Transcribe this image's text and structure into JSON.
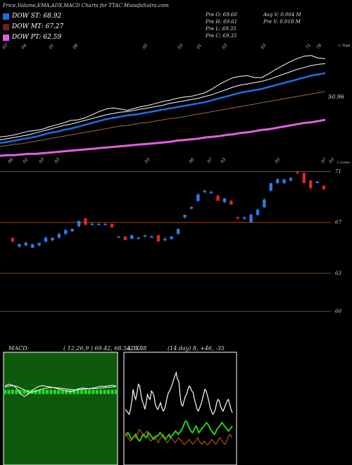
{
  "header": {
    "title": "Price,Volume,EMA,ADX,MACD Charts for TTAC MunafaSutra.com"
  },
  "legend": [
    {
      "label": "DOW ST: 68.92",
      "color": "#1e6ee0"
    },
    {
      "label": "DOW MT: 67.27",
      "color": "#6e1e1e"
    },
    {
      "label": "DOW PT: 62.59",
      "color": "#e060e0"
    }
  ],
  "ohlc": {
    "open": "Pre O: 69.60",
    "high": "Pre H: 69.61",
    "low": "Pre L: 69.35",
    "close": "Pre C: 69.35",
    "avg_volume": "Avg V: 0.004 M",
    "volume": "Pre V: 0.018 M"
  },
  "panels": {
    "ema_right_label": "< Tops",
    "ema_value_label": "50.96",
    "price_right_label": "< Lows"
  },
  "macd": {
    "label": "MACD:",
    "params": "( 12,26,9 ) 69.42, 68.54, 0.88"
  },
  "adx": {
    "label": "ADX",
    "params": "(14 day) 8, +46, -35"
  },
  "chart_data": [
    {
      "type": "line",
      "name": "ema-panel",
      "series": [
        {
          "color": "#ffffff",
          "values": [
            57.0,
            57.1,
            57.3,
            57.6,
            57.9,
            58.0,
            58.2,
            58.6,
            58.9,
            59.2,
            59.6,
            59.7,
            60.0,
            60.5,
            61.0,
            61.4,
            61.6,
            61.4,
            61.2,
            61.5,
            61.8,
            62.0,
            62.3,
            62.6,
            62.8,
            63.1,
            63.3,
            63.4,
            63.7,
            64.0,
            64.6,
            65.3,
            65.9,
            66.4,
            66.6,
            66.7,
            66.4,
            66.4,
            67.0,
            67.7,
            68.3,
            68.9,
            69.4,
            69.8,
            69.9,
            69.5,
            69.4
          ]
        },
        {
          "color": "#ffffff",
          "values": [
            56.5,
            56.7,
            56.9,
            57.1,
            57.3,
            57.6,
            57.9,
            58.2,
            58.5,
            58.8,
            59.0,
            59.3,
            59.6,
            59.9,
            60.2,
            60.5,
            60.7,
            60.9,
            61.0,
            61.2,
            61.4,
            61.6,
            61.8,
            62.0,
            62.3,
            62.5,
            62.7,
            62.9,
            63.1,
            63.4,
            63.7,
            64.1,
            64.5,
            64.9,
            65.2,
            65.4,
            65.6,
            65.8,
            66.1,
            66.5,
            66.9,
            67.3,
            67.7,
            68.0,
            68.3,
            68.5,
            68.6
          ]
        },
        {
          "color": "#1e6ee0",
          "values": [
            56.0,
            56.2,
            56.4,
            56.6,
            56.8,
            57.0,
            57.3,
            57.6,
            57.8,
            58.1,
            58.3,
            58.6,
            58.9,
            59.2,
            59.5,
            59.8,
            60.0,
            60.2,
            60.4,
            60.5,
            60.7,
            60.9,
            61.1,
            61.3,
            61.5,
            61.7,
            61.9,
            62.1,
            62.3,
            62.5,
            62.8,
            63.1,
            63.4,
            63.7,
            64.0,
            64.2,
            64.4,
            64.6,
            64.9,
            65.2,
            65.5,
            65.8,
            66.1,
            66.4,
            66.7,
            66.9,
            67.1
          ]
        },
        {
          "color": "#9a6a3a",
          "values": [
            55.5,
            55.6,
            55.8,
            55.9,
            56.1,
            56.3,
            56.5,
            56.7,
            56.9,
            57.1,
            57.3,
            57.5,
            57.7,
            57.9,
            58.1,
            58.3,
            58.5,
            58.7,
            58.8,
            59.0,
            59.2,
            59.3,
            59.5,
            59.7,
            59.9,
            60.0,
            60.2,
            60.4,
            60.6,
            60.8,
            61.0,
            61.2,
            61.4,
            61.6,
            61.8,
            62.0,
            62.2,
            62.4,
            62.6,
            62.8,
            63.0,
            63.2,
            63.4,
            63.6,
            63.8,
            64.0,
            64.2
          ]
        },
        {
          "color": "#e060e0",
          "values": [
            54.0,
            54.1,
            54.1,
            54.2,
            54.3,
            54.3,
            54.4,
            54.5,
            54.6,
            54.7,
            54.8,
            54.9,
            55.0,
            55.1,
            55.2,
            55.3,
            55.4,
            55.5,
            55.6,
            55.7,
            55.8,
            55.9,
            56.0,
            56.1,
            56.2,
            56.4,
            56.5,
            56.6,
            56.7,
            56.9,
            57.0,
            57.1,
            57.3,
            57.4,
            57.6,
            57.7,
            57.9,
            58.1,
            58.2,
            58.4,
            58.6,
            58.8,
            59.0,
            59.2,
            59.3,
            59.5,
            59.7
          ]
        }
      ],
      "ylim": [
        53,
        72
      ],
      "right_label": "50.96",
      "x_tick_labels": [
        "03",
        "04",
        "01",
        "08",
        "05",
        "03",
        "01",
        "03",
        "03",
        "71",
        "78"
      ],
      "x_bottom_labels": [
        "06",
        "02",
        "03",
        "03",
        "03",
        "06",
        "07",
        "03",
        "03",
        "07",
        "03"
      ]
    },
    {
      "type": "candlestick",
      "name": "price-panel",
      "ylim": [
        58,
        71.2
      ],
      "price_ticks": [
        71,
        67,
        63,
        60
      ],
      "candles": [
        {
          "o": 65.8,
          "c": 65.5,
          "h": 65.8,
          "l": 65.4,
          "up": false
        },
        {
          "o": 65.1,
          "c": 65.3,
          "h": 65.3,
          "l": 65.0,
          "up": true
        },
        {
          "o": 65.2,
          "c": 65.4,
          "h": 65.5,
          "l": 65.1,
          "up": true
        },
        {
          "o": 65.0,
          "c": 65.3,
          "h": 65.3,
          "l": 65.0,
          "up": true
        },
        {
          "o": 65.2,
          "c": 65.4,
          "h": 65.4,
          "l": 65.1,
          "up": true
        },
        {
          "o": 65.5,
          "c": 65.8,
          "h": 65.9,
          "l": 65.4,
          "up": true
        },
        {
          "o": 65.6,
          "c": 65.8,
          "h": 65.8,
          "l": 65.5,
          "up": true
        },
        {
          "o": 65.8,
          "c": 66.1,
          "h": 66.2,
          "l": 65.7,
          "up": true
        },
        {
          "o": 66.1,
          "c": 66.4,
          "h": 66.5,
          "l": 66.0,
          "up": true
        },
        {
          "o": 66.3,
          "c": 66.5,
          "h": 66.5,
          "l": 66.2,
          "up": true
        },
        {
          "o": 66.7,
          "c": 67.1,
          "h": 67.2,
          "l": 66.6,
          "up": true
        },
        {
          "o": 67.3,
          "c": 66.8,
          "h": 67.4,
          "l": 66.8,
          "up": false
        },
        {
          "o": 66.9,
          "c": 66.9,
          "h": 67.0,
          "l": 66.8,
          "up": true
        },
        {
          "o": 66.9,
          "c": 66.9,
          "h": 66.9,
          "l": 66.8,
          "up": true
        },
        {
          "o": 66.8,
          "c": 66.9,
          "h": 66.9,
          "l": 66.8,
          "up": true
        },
        {
          "o": 66.9,
          "c": 66.6,
          "h": 66.9,
          "l": 66.6,
          "up": false
        },
        {
          "o": 65.9,
          "c": 65.9,
          "h": 65.9,
          "l": 65.8,
          "up": true
        },
        {
          "o": 65.9,
          "c": 65.6,
          "h": 65.9,
          "l": 65.6,
          "up": false
        },
        {
          "o": 65.7,
          "c": 66.0,
          "h": 66.0,
          "l": 65.7,
          "up": true
        },
        {
          "o": 65.8,
          "c": 65.8,
          "h": 65.9,
          "l": 65.8,
          "up": true
        },
        {
          "o": 66.0,
          "c": 65.9,
          "h": 66.0,
          "l": 65.8,
          "up": true
        },
        {
          "o": 65.9,
          "c": 65.9,
          "h": 66.0,
          "l": 65.9,
          "up": true
        },
        {
          "o": 66.0,
          "c": 65.5,
          "h": 66.0,
          "l": 65.5,
          "up": false
        },
        {
          "o": 65.7,
          "c": 65.7,
          "h": 65.9,
          "l": 65.5,
          "up": true
        },
        {
          "o": 65.7,
          "c": 65.9,
          "h": 65.9,
          "l": 65.6,
          "up": true
        },
        {
          "o": 66.1,
          "c": 66.5,
          "h": 66.5,
          "l": 66.0,
          "up": true
        },
        {
          "o": 67.4,
          "c": 67.6,
          "h": 67.6,
          "l": 67.3,
          "up": true
        },
        {
          "o": 68.1,
          "c": 68.2,
          "h": 68.3,
          "l": 68.0,
          "up": true
        },
        {
          "o": 68.7,
          "c": 69.2,
          "h": 69.3,
          "l": 68.6,
          "up": true
        },
        {
          "o": 69.4,
          "c": 69.5,
          "h": 69.6,
          "l": 69.3,
          "up": true
        },
        {
          "o": 69.4,
          "c": 69.4,
          "h": 69.5,
          "l": 69.3,
          "up": true
        },
        {
          "o": 69.1,
          "c": 68.7,
          "h": 69.2,
          "l": 68.7,
          "up": false
        },
        {
          "o": 68.6,
          "c": 68.9,
          "h": 68.9,
          "l": 68.5,
          "up": true
        },
        {
          "o": 68.7,
          "c": 68.4,
          "h": 68.8,
          "l": 68.4,
          "up": false
        },
        {
          "o": 67.4,
          "c": 67.3,
          "h": 67.5,
          "l": 67.3,
          "up": false
        },
        {
          "o": 67.3,
          "c": 67.4,
          "h": 67.5,
          "l": 67.2,
          "up": true
        },
        {
          "o": 67.0,
          "c": 67.6,
          "h": 67.7,
          "l": 67.0,
          "up": true
        },
        {
          "o": 67.6,
          "c": 68.0,
          "h": 68.1,
          "l": 67.5,
          "up": true
        },
        {
          "o": 68.2,
          "c": 68.8,
          "h": 68.9,
          "l": 68.1,
          "up": true
        },
        {
          "o": 69.5,
          "c": 70.1,
          "h": 70.1,
          "l": 69.4,
          "up": true
        },
        {
          "o": 70.1,
          "c": 70.4,
          "h": 70.5,
          "l": 70.0,
          "up": true
        },
        {
          "o": 70.1,
          "c": 70.4,
          "h": 70.4,
          "l": 70.0,
          "up": true
        },
        {
          "o": 70.3,
          "c": 70.5,
          "h": 70.6,
          "l": 70.2,
          "up": true
        },
        {
          "o": 71.0,
          "c": 70.9,
          "h": 71.1,
          "l": 70.8,
          "up": false
        },
        {
          "o": 70.9,
          "c": 70.1,
          "h": 70.9,
          "l": 70.1,
          "up": false
        },
        {
          "o": 70.3,
          "c": 69.7,
          "h": 70.3,
          "l": 69.6,
          "up": false
        },
        {
          "o": 70.2,
          "c": 70.2,
          "h": 70.3,
          "l": 70.2,
          "up": true
        },
        {
          "o": 69.9,
          "c": 69.6,
          "h": 69.9,
          "l": 69.6,
          "up": false
        }
      ]
    },
    {
      "type": "line",
      "name": "macd-panel",
      "series": [
        {
          "color": "#ffffff",
          "values": [
            0.2,
            0.3,
            0.25,
            0.1,
            -0.2,
            -0.35,
            -0.25,
            -0.05,
            0.1,
            0.2,
            0.22,
            0.18,
            0.15,
            0.1,
            0.05,
            0.0,
            -0.05,
            -0.1,
            -0.05,
            0.05,
            0.1,
            0.08,
            0.06,
            0.1,
            0.15,
            0.2,
            0.18,
            0.22,
            0.25,
            0.2
          ]
        },
        {
          "color": "#ffffff",
          "values": [
            0.15,
            0.2,
            0.22,
            0.2,
            0.1,
            0.0,
            -0.1,
            -0.12,
            -0.08,
            0.0,
            0.05,
            0.1,
            0.12,
            0.12,
            0.1,
            0.08,
            0.05,
            0.02,
            0.0,
            0.01,
            0.03,
            0.05,
            0.06,
            0.07,
            0.08,
            0.1,
            0.12,
            0.14,
            0.16,
            0.18
          ]
        }
      ],
      "ylim": [
        -4,
        2
      ]
    },
    {
      "type": "line",
      "name": "adx-panel",
      "series": [
        {
          "color": "#ffffff",
          "values": [
            30,
            29,
            28,
            27,
            30,
            35,
            42,
            38,
            36,
            40,
            45,
            44,
            39,
            35,
            33,
            30,
            34,
            39,
            37,
            36,
            41,
            40,
            38,
            33,
            31,
            30,
            32,
            34,
            31,
            29,
            30,
            33,
            37,
            40,
            41,
            43,
            45,
            48,
            50,
            52,
            48,
            47,
            38,
            33,
            32,
            35,
            38,
            39,
            42,
            44,
            43,
            41,
            40,
            36,
            33,
            30,
            29,
            31,
            33,
            36,
            39,
            42,
            41,
            38,
            35,
            31,
            29,
            27,
            28,
            30,
            34,
            36,
            35,
            32,
            30,
            29,
            31,
            33,
            35,
            36,
            33,
            30,
            28
          ]
        },
        {
          "color": "#22cc22",
          "values": [
            14,
            15,
            16,
            15,
            13,
            12,
            13,
            14,
            15,
            13,
            12,
            11,
            12,
            14,
            15,
            14,
            13,
            14,
            16,
            15,
            14,
            13,
            12,
            13,
            14,
            14,
            15,
            16,
            15,
            14,
            13,
            12,
            13,
            14,
            15,
            13,
            14,
            15,
            16,
            17,
            16,
            15,
            16,
            17,
            18,
            20,
            22,
            23,
            22,
            20,
            18,
            17,
            16,
            17,
            19,
            20,
            18,
            16,
            17,
            18,
            19,
            20,
            21,
            22,
            21,
            20,
            18,
            17,
            16,
            15,
            16,
            18,
            19,
            20,
            21,
            22,
            21,
            20,
            19,
            18,
            17,
            18,
            19,
            20
          ]
        },
        {
          "color": "#cc6600",
          "values": [
            16,
            15,
            13,
            12,
            11,
            12,
            13,
            14,
            13,
            14,
            16,
            18,
            17,
            16,
            14,
            15,
            16,
            17,
            14,
            12,
            11,
            12,
            13,
            14,
            13,
            11,
            10,
            12,
            13,
            14,
            15,
            13,
            11,
            10,
            11,
            12,
            13,
            12,
            11,
            10,
            11,
            12,
            13,
            12,
            11,
            10,
            9,
            9,
            10,
            11,
            12,
            11,
            10,
            9,
            10,
            11,
            12,
            13,
            11,
            10,
            9,
            10,
            11,
            10,
            9,
            9,
            10,
            11,
            12,
            11,
            10,
            9,
            10,
            12,
            13,
            12,
            11,
            10,
            9,
            10,
            12,
            14,
            15,
            14,
            13
          ]
        }
      ],
      "ylim": [
        0,
        60
      ]
    }
  ]
}
